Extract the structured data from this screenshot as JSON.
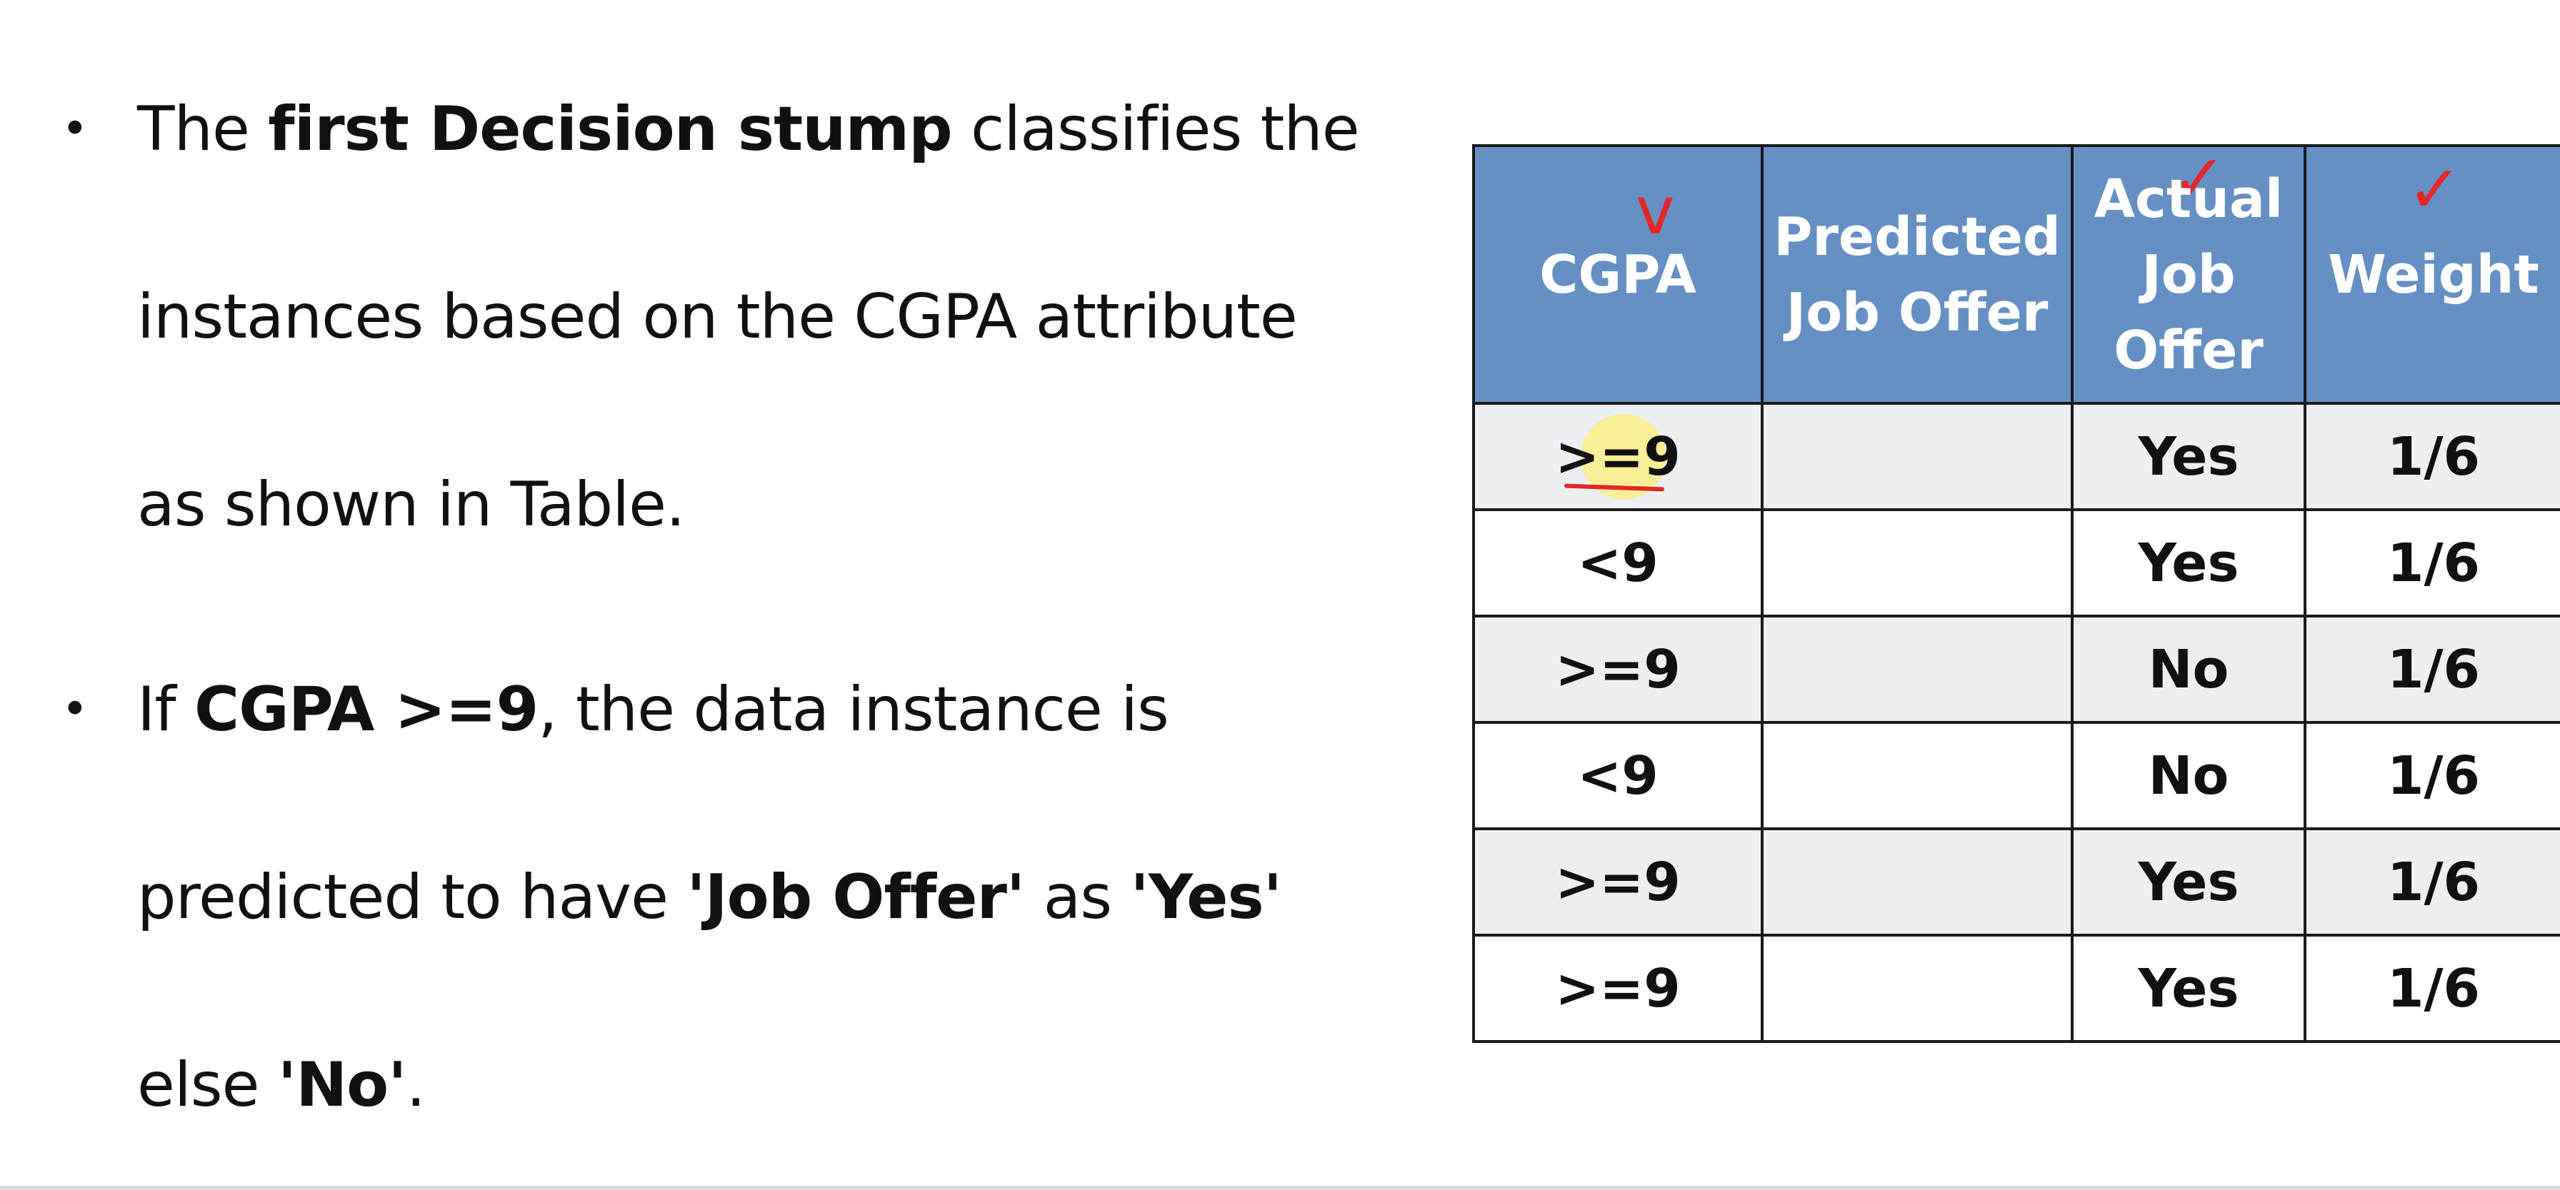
{
  "slide": {
    "bullets": [
      {
        "parts": [
          {
            "text": "The ",
            "bold": false
          },
          {
            "text": "first Decision stump",
            "bold": true
          },
          {
            "text": " classifies the",
            "bold": false
          }
        ],
        "line2": "instances based on the CGPA attribute",
        "line3": "as shown in Table."
      },
      {
        "parts": [
          {
            "text": "If ",
            "bold": false
          },
          {
            "text": "CGPA >=9",
            "bold": true
          },
          {
            "text": ", the data instance is",
            "bold": false
          }
        ],
        "line2_parts": [
          {
            "text": "predicted to have ",
            "bold": false
          },
          {
            "text": "'Job Offer'",
            "bold": true
          },
          {
            "text": " as ",
            "bold": false
          },
          {
            "text": "'Yes'",
            "bold": true
          }
        ],
        "line3_parts": [
          {
            "text": "else ",
            "bold": false
          },
          {
            "text": "'No'",
            "bold": true
          },
          {
            "text": ".",
            "bold": false
          }
        ]
      }
    ]
  },
  "table": {
    "headers": [
      "CGPA",
      "Predicted Job Offer",
      "Actual Job Offer",
      "Weight"
    ],
    "rows": [
      [
        ">=9",
        "",
        "Yes",
        "1/6"
      ],
      [
        "<9",
        "",
        "Yes",
        "1/6"
      ],
      [
        ">=9",
        "",
        "No",
        "1/6"
      ],
      [
        "<9",
        "",
        "No",
        "1/6"
      ],
      [
        ">=9",
        "",
        "Yes",
        "1/6"
      ],
      [
        ">=9",
        "",
        "Yes",
        "1/6"
      ]
    ]
  },
  "colors": {
    "header_bg": "#6690c4",
    "header_text": "#ffffff",
    "row_alt_bg": "#eceff2",
    "annotation_red": "#e52727",
    "highlight_yellow": "#ffee66"
  },
  "annotations": {
    "cgpa_check": "v",
    "actual_check": "✓",
    "weight_check": "✓"
  }
}
